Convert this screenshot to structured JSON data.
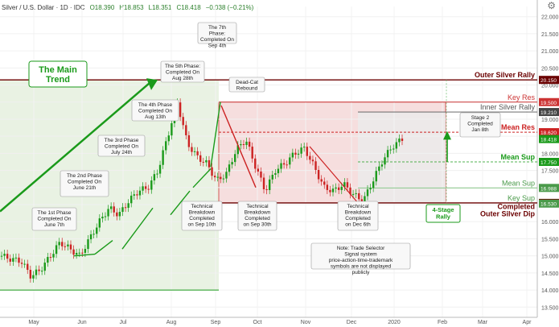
{
  "header": {
    "symbol": "Silver / U.S. Dollar · 1D · IDC",
    "open": "O18.390",
    "high": "H18.853",
    "low": "L18.351",
    "close": "C18.418",
    "change": "−0.038 (−0.21%)"
  },
  "colors": {
    "up": "#1a9a1a",
    "down": "#cc2222",
    "green_zone": "#e9f2e3",
    "red_zone": "#f6dede",
    "grey_zone": "#ebebeb",
    "dark_red": "#6b0000",
    "green_text": "#2a9a2a",
    "label_green": "#2d8a2d"
  },
  "chart_data": {
    "type": "candlestick",
    "ylim": [
      13.2,
      22.3
    ],
    "y_ticks": [
      "22.000",
      "21.500",
      "21.000",
      "20.500",
      "20.000",
      "19.500",
      "19.000",
      "18.500",
      "18.000",
      "17.500",
      "17.000",
      "16.500",
      "16.000",
      "15.500",
      "15.000",
      "14.500",
      "14.000",
      "13.500"
    ],
    "x_ticks": [
      "May",
      "Jun",
      "Jul",
      "Aug",
      "Sep",
      "Oct",
      "Nov",
      "Dec",
      "2020",
      "Feb",
      "Mar",
      "Apr"
    ],
    "levels": [
      {
        "name": "Outer Silver Rally",
        "value": 20.15,
        "tag": "20.150"
      },
      {
        "name": "Key Res",
        "value": 19.5,
        "tag": "19.500"
      },
      {
        "name": "Inner Silver Rally",
        "value": 19.21,
        "tag": "19.210"
      },
      {
        "name": "Mean Res",
        "value": 18.62,
        "tag": "18.620"
      },
      {
        "name": "Last price",
        "value": 18.418,
        "tag": "18.418"
      },
      {
        "name": "Mean Sup",
        "value": 17.75,
        "tag": "17.750"
      },
      {
        "name": "Mean Sup",
        "value": 16.988,
        "tag": "16.988"
      },
      {
        "name": "Key Sup",
        "value": 16.55,
        "tag": "16.550"
      },
      {
        "name": "Completed Outer Silver Dip",
        "value": 16.53,
        "tag": "16.530"
      }
    ],
    "price_path": [
      [
        "May",
        15.0
      ],
      [
        "May",
        14.9
      ],
      [
        "May",
        14.85
      ],
      [
        "Jun",
        14.4
      ],
      [
        "Jun",
        14.6
      ],
      [
        "Jun",
        15.0
      ],
      [
        "Jun",
        15.4
      ],
      [
        "Jul",
        15.2
      ],
      [
        "Jul",
        15.0
      ],
      [
        "Jul",
        15.5
      ],
      [
        "Jul",
        16.0
      ],
      [
        "Jul",
        16.4
      ],
      [
        "Aug",
        16.2
      ],
      [
        "Aug",
        16.6
      ],
      [
        "Aug",
        16.9
      ],
      [
        "Aug",
        17.0
      ],
      [
        "Aug",
        17.5
      ],
      [
        "Sep",
        18.5
      ],
      [
        "Sep",
        19.5
      ],
      [
        "Sep",
        18.3
      ],
      [
        "Sep",
        17.9
      ],
      [
        "Sep",
        17.7
      ],
      [
        "Oct",
        17.2
      ],
      [
        "Oct",
        17.4
      ],
      [
        "Oct",
        18.1
      ],
      [
        "Oct",
        18.4
      ],
      [
        "Oct",
        17.6
      ],
      [
        "Oct",
        16.9
      ],
      [
        "Nov",
        17.5
      ],
      [
        "Nov",
        17.7
      ],
      [
        "Nov",
        18.0
      ],
      [
        "Nov",
        18.15
      ],
      [
        "Nov",
        17.6
      ],
      [
        "Dec",
        17.0
      ],
      [
        "Dec",
        16.9
      ],
      [
        "Dec",
        17.1
      ],
      [
        "Dec",
        16.8
      ],
      [
        "Dec",
        16.6
      ],
      [
        "2020",
        17.2
      ],
      [
        "2020",
        17.8
      ],
      [
        "2020",
        18.2
      ],
      [
        "2020",
        18.42
      ]
    ]
  },
  "annotations": {
    "main_trend": "The Main Trend",
    "phase1": "The 1st Phase Completed On June 7th",
    "phase2": "The 2nd Phase Completed On June 21th",
    "phase3": "The 3rd Phase Completed On July 24th",
    "phase4": "The 4th Phase Completed On Aug 13th",
    "phase5": "The 5th Phase: Completed On Aug 28th",
    "phase7": "The 7th Phase: Completed On Sep 4th",
    "deadcat": "Dead-Cat Rebound",
    "tb1": "Technical Breakdown Completed on Sep 10th",
    "tb2": "Technical Breakdown Completed on Sep 30th",
    "tb3": "Technical Breakdown Completed on Dec 6th",
    "stage2": "Stage 2 Completed Jan 8th",
    "four_stage": "4-Stage Rally",
    "note": "Note: Trade Selector Signal system price-action-time-trademark symbols are not displayed publicly",
    "lbl_outer_rally": "Outer Silver Rally",
    "lbl_key_res": "Key Res",
    "lbl_inner_rally": "Inner Silver Rally",
    "lbl_mean_res": "Mean Res",
    "lbl_mean_sup1": "Mean Sup",
    "lbl_mean_sup2": "Mean Sup",
    "lbl_key_sup": "Key Sup",
    "lbl_completed": "Completed",
    "lbl_outer_dip": "Outer Silver Dip"
  }
}
